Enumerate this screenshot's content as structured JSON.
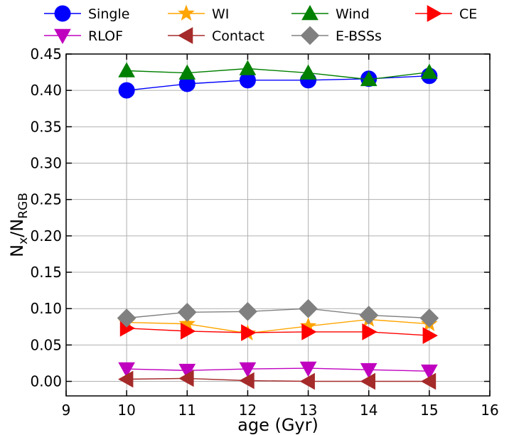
{
  "chart_data": {
    "type": "line",
    "title": "",
    "xlabel": "age (Gyr)",
    "ylabel": {
      "main": "N",
      "sub_x": "x",
      "slash": "/N",
      "sub_rgb": "RGB"
    },
    "xlim": [
      9,
      16
    ],
    "ylim": [
      -0.02,
      0.45
    ],
    "x_ticks": [
      "9",
      "10",
      "11",
      "12",
      "13",
      "14",
      "15",
      "16"
    ],
    "y_ticks": [
      "0.00",
      "0.05",
      "0.10",
      "0.15",
      "0.20",
      "0.25",
      "0.30",
      "0.35",
      "0.40",
      "0.45"
    ],
    "grid": true,
    "legend_placement": "top, outside plot, 4 columns",
    "x": [
      10,
      11,
      12,
      13,
      14,
      15
    ],
    "series": [
      {
        "name": "Single",
        "color": "#0000ff",
        "marker": "circle",
        "values": [
          0.4,
          0.409,
          0.414,
          0.414,
          0.416,
          0.42
        ]
      },
      {
        "name": "WI",
        "color": "#ffa500",
        "marker": "star",
        "values": [
          0.081,
          0.079,
          0.066,
          0.076,
          0.085,
          0.079
        ]
      },
      {
        "name": "Wind",
        "color": "#008000",
        "marker": "triangle-up",
        "values": [
          0.427,
          0.424,
          0.43,
          0.424,
          0.415,
          0.425
        ]
      },
      {
        "name": "CE",
        "color": "#ff0000",
        "marker": "triangle-right",
        "values": [
          0.073,
          0.069,
          0.067,
          0.068,
          0.068,
          0.063
        ]
      },
      {
        "name": "RLOF",
        "color": "#bf00bf",
        "marker": "triangle-down",
        "values": [
          0.017,
          0.015,
          0.017,
          0.018,
          0.016,
          0.014
        ]
      },
      {
        "name": "Contact",
        "color": "#a52a2a",
        "marker": "triangle-left",
        "values": [
          0.003,
          0.004,
          0.001,
          0.0,
          0.0,
          0.0
        ]
      },
      {
        "name": "E-BSSs",
        "color": "#808080",
        "marker": "diamond",
        "values": [
          0.087,
          0.095,
          0.096,
          0.1,
          0.091,
          0.087
        ]
      }
    ]
  }
}
